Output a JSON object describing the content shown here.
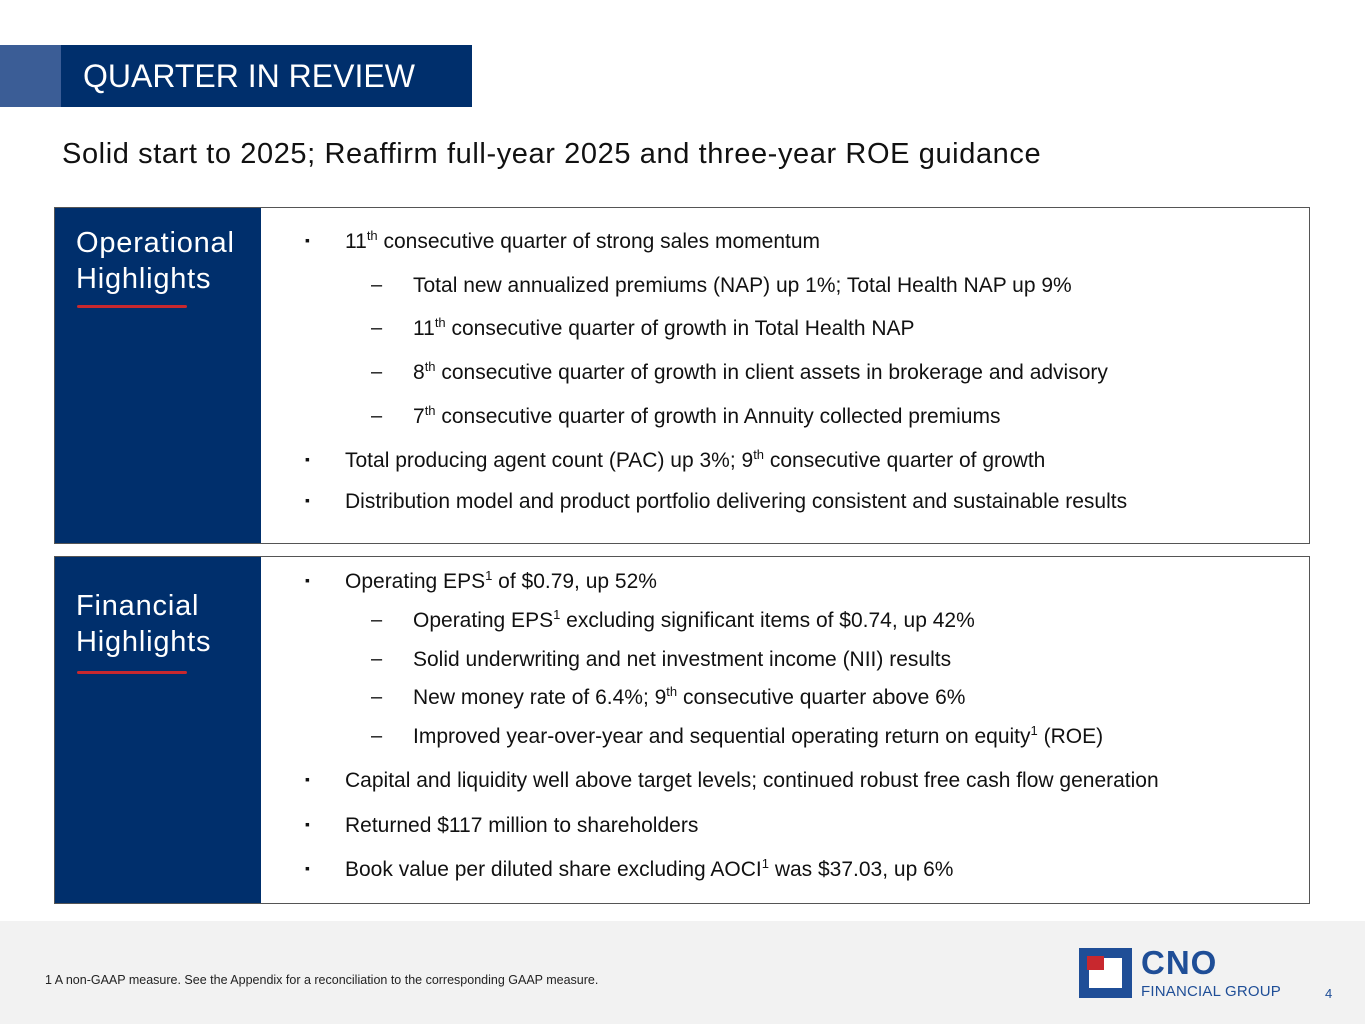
{
  "header": {
    "title": "QUARTER IN REVIEW"
  },
  "subtitle": "Solid start to 2025; Reaffirm full-year 2025 and three-year ROE guidance",
  "operational": {
    "title_line1": "Operational",
    "title_line2": "Highlights",
    "b1": {
      "pre": "11",
      "sup": "th",
      "post": " consecutive quarter of strong sales momentum"
    },
    "s1": {
      "text": "Total new annualized premiums (NAP) up 1%; Total Health NAP up 9%"
    },
    "s2": {
      "pre": "11",
      "sup": "th",
      "post": " consecutive quarter of growth in Total Health NAP"
    },
    "s3": {
      "pre": "8",
      "sup": "th",
      "post": " consecutive quarter of growth in client assets in brokerage and advisory"
    },
    "s4": {
      "pre": "7",
      "sup": "th",
      "post": " consecutive quarter of growth in Annuity collected premiums"
    },
    "b2": {
      "pre": "Total producing agent count (PAC) up 3%; 9",
      "sup": "th",
      "post": " consecutive quarter of growth"
    },
    "b3": {
      "text": "Distribution model and product portfolio delivering consistent and sustainable results"
    }
  },
  "financial": {
    "title_line1": "Financial",
    "title_line2": "Highlights",
    "b1": {
      "pre": "Operating EPS",
      "sup": "1",
      "post": " of $0.79, up 52%"
    },
    "s1": {
      "pre": "Operating EPS",
      "sup": "1",
      "post": " excluding significant items of $0.74, up 42%"
    },
    "s2": {
      "text": "Solid underwriting and net investment income (NII) results"
    },
    "s3": {
      "pre": "New money rate of 6.4%; 9",
      "sup": "th",
      "post": " consecutive quarter above 6%"
    },
    "s4": {
      "pre": "Improved year-over-year and sequential operating return on equity",
      "sup": "1",
      "post": " (ROE)"
    },
    "b2": {
      "text": "Capital and liquidity well above target levels; continued robust free cash flow generation"
    },
    "b3": {
      "text": "Returned $117 million to shareholders"
    },
    "b4": {
      "pre": "Book value per diluted share excluding AOCI",
      "sup": "1",
      "post": " was $37.03, up 6%"
    }
  },
  "markers": {
    "bullet": "▪",
    "dash": "–"
  },
  "footer": {
    "footnote": "1  A non-GAAP measure. See the Appendix for a reconciliation to the corresponding GAAP measure.",
    "logo_name": "CNO",
    "logo_sub": "FINANCIAL GROUP",
    "page_number": "4"
  },
  "colors": {
    "navy": "#002f6c",
    "accent_blue": "#3b5d96",
    "red": "#c8282e",
    "logo_blue": "#1f4e97"
  }
}
